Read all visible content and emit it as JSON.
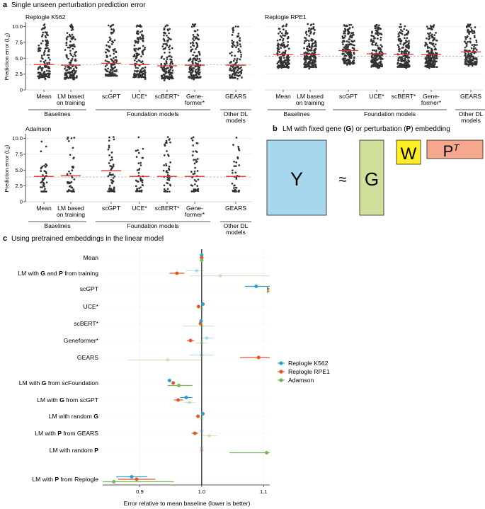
{
  "colors": {
    "k562": "#2a9fd0",
    "rpe1": "#e4561f",
    "adamson": "#7cb659",
    "dot": "#333333",
    "mean_line": "#e03030",
    "matrix_Y": "#a7d7ec",
    "matrix_G": "#cfe09a",
    "matrix_W": "#ffee22",
    "matrix_P": "#f6a78e",
    "spine": "#222222"
  },
  "panel_a": {
    "letter": "a",
    "title": "Single unseen perturbation prediction error",
    "ylabel": "Prediction error (L",
    "ylabel_sub": "2",
    "ylabel_end": ")",
    "categories": [
      {
        "lines": [
          "Mean"
        ]
      },
      {
        "lines": [
          "LM based",
          "on training"
        ]
      },
      {
        "lines": [
          "scGPT"
        ]
      },
      {
        "lines": [
          "UCE*"
        ]
      },
      {
        "lines": [
          "scBERT*"
        ]
      },
      {
        "lines": [
          "Gene-",
          "former*"
        ]
      },
      {
        "lines": [
          "GEARS"
        ]
      }
    ],
    "groups": [
      {
        "label": "Baselines"
      },
      {
        "label": "Foundation models"
      },
      {
        "label": "Other DL",
        "label2": "models"
      }
    ]
  },
  "chart_data": [
    {
      "type": "scatter",
      "title": "Replogle K562",
      "categories": [
        "Mean",
        "LM based on training",
        "scGPT",
        "UCE*",
        "scBERT*",
        "Geneformer*",
        "GEARS"
      ],
      "ylim": [
        0,
        10.5
      ],
      "yticks": [
        "0",
        "2.5",
        "5.0",
        "7.5",
        "10.0"
      ],
      "means": [
        4.0,
        3.9,
        4.2,
        4.0,
        3.8,
        3.9,
        3.9
      ],
      "dashed_baseline": 4.0
    },
    {
      "type": "scatter",
      "title": "Replogle RPE1",
      "categories": [
        "Mean",
        "LM based on training",
        "scGPT",
        "UCE*",
        "scBERT*",
        "Geneformer*",
        "GEARS"
      ],
      "ylim": [
        0,
        10.5
      ],
      "yticks": [],
      "means": [
        5.6,
        5.6,
        6.2,
        5.7,
        5.6,
        5.6,
        6.0
      ],
      "dashed_baseline": 5.3
    },
    {
      "type": "scatter",
      "title": "Adamson",
      "categories": [
        "Mean",
        "LM based on training",
        "scGPT",
        "UCE*",
        "scBERT*",
        "Geneformer*",
        "GEARS"
      ],
      "ylim": [
        0,
        10.5
      ],
      "yticks": [
        "0",
        "2.5",
        "5.0",
        "7.5",
        "10.0"
      ],
      "means": [
        4.0,
        4.1,
        4.9,
        4.0,
        4.0,
        4.0,
        4.0
      ],
      "dashed_baseline": 3.9
    },
    {
      "type": "scatter",
      "title": "Using pretrained embeddings in the linear model",
      "xlabel": "Error relative to mean baseline (lower is better)",
      "xlim": [
        0.84,
        1.11
      ],
      "xticks": [
        "0.9",
        "1.0",
        "1.1"
      ],
      "legend_position": "right",
      "rows": [
        "Mean",
        "LM with G and P from training",
        "scGPT",
        "UCE*",
        "scBERT*",
        "Geneformer*",
        "GEARS",
        "LM with G from scFoundation",
        "LM with G from scGPT",
        "LM with random G",
        "LM with P from GEARS",
        "LM with random P",
        "LM with P from Replogle"
      ],
      "series": [
        {
          "name": "Replogle K562",
          "values": [
            {
              "y": "Mean",
              "x": 1.0
            },
            {
              "y": "LM with G and P from training",
              "x": 0.992,
              "lo": 0.975,
              "hi": 1.003,
              "faded": true
            },
            {
              "y": "scGPT",
              "x": 1.088,
              "lo": 1.07,
              "hi": 1.11
            },
            {
              "y": "UCE*",
              "x": 1.002
            },
            {
              "y": "scBERT*",
              "x": 0.999
            },
            {
              "y": "Geneformer*",
              "x": 1.008,
              "lo": 0.998,
              "hi": 1.02,
              "faded": true
            },
            {
              "y": "GEARS",
              "x": 1.0,
              "lo": 0.98,
              "hi": 1.02,
              "faded": true
            },
            {
              "y": "LM with G from scFoundation",
              "x": 0.948
            },
            {
              "y": "LM with G from scGPT",
              "x": 0.975,
              "lo": 0.965,
              "hi": 0.985
            },
            {
              "y": "LM with random G",
              "x": 1.002
            },
            {
              "y": "LM with P from GEARS",
              "x": 1.0,
              "faded": true
            },
            {
              "y": "LM with random P",
              "x": 1.0,
              "faded": true
            },
            {
              "y": "LM with P from Replogle",
              "x": 0.887,
              "lo": 0.862,
              "hi": 0.912
            }
          ]
        },
        {
          "name": "Replogle RPE1",
          "values": [
            {
              "y": "Mean",
              "x": 1.0
            },
            {
              "y": "LM with G and P from training",
              "x": 0.96,
              "lo": 0.948,
              "hi": 0.972
            },
            {
              "y": "scGPT",
              "x": 1.11
            },
            {
              "y": "UCE*",
              "x": 0.995
            },
            {
              "y": "scBERT*",
              "x": 0.998
            },
            {
              "y": "Geneformer*",
              "x": 0.982,
              "lo": 0.976,
              "hi": 0.988
            },
            {
              "y": "GEARS",
              "x": 1.092,
              "lo": 1.062,
              "hi": 1.11
            },
            {
              "y": "LM with G from scFoundation",
              "x": 0.954
            },
            {
              "y": "LM with G from scGPT",
              "x": 0.962,
              "lo": 0.955,
              "hi": 0.97
            },
            {
              "y": "LM with random G",
              "x": 0.994
            },
            {
              "y": "LM with P from GEARS",
              "x": 0.989,
              "lo": 0.984,
              "hi": 0.994
            },
            {
              "y": "LM with random P",
              "x": 1.0,
              "faded": true
            },
            {
              "y": "LM with P from Replogle",
              "x": 0.895,
              "lo": 0.865,
              "hi": 0.925
            }
          ]
        },
        {
          "name": "Adamson",
          "values": [
            {
              "y": "Mean",
              "x": 1.0
            },
            {
              "y": "LM with G and P from training",
              "x": 1.03,
              "lo": 0.98,
              "hi": 1.11,
              "faded": true
            },
            {
              "y": "scGPT",
              "x": 1.11
            },
            {
              "y": "UCE*",
              "x": 1.0,
              "faded": true
            },
            {
              "y": "scBERT*",
              "x": 1.0,
              "lo": 0.97,
              "hi": 1.02,
              "faded": true
            },
            {
              "y": "Geneformer*",
              "x": 1.0,
              "lo": 0.99,
              "hi": 1.01,
              "faded": true
            },
            {
              "y": "GEARS",
              "x": 0.945,
              "lo": 0.88,
              "hi": 1.0,
              "faded": true
            },
            {
              "y": "LM with G from scFoundation",
              "x": 0.963,
              "lo": 0.945,
              "hi": 0.985
            },
            {
              "y": "LM with G from scGPT",
              "x": 0.98,
              "lo": 0.97,
              "hi": 0.99,
              "faded": true
            },
            {
              "y": "LM with random G",
              "x": 1.0,
              "faded": true
            },
            {
              "y": "LM with P from GEARS",
              "x": 1.012,
              "lo": 1.0,
              "hi": 1.025,
              "faded": true
            },
            {
              "y": "LM with random P",
              "x": 1.105,
              "lo": 1.045,
              "hi": 1.11
            },
            {
              "y": "LM with P from Replogle",
              "x": 0.858,
              "lo": 0.84,
              "hi": 0.955
            }
          ]
        }
      ]
    }
  ],
  "panel_b": {
    "letter": "b",
    "title_parts": [
      "LM with fixed gene (",
      "G",
      ") or perturbation (",
      "P",
      ") embedding"
    ],
    "Y": "Y",
    "approx": "≈",
    "G": "G",
    "W": "W",
    "P": "P",
    "P_sup": "T"
  },
  "panel_c": {
    "letter": "c",
    "rows": [
      {
        "label": "Mean"
      },
      {
        "parts": [
          "LM with ",
          "G",
          " and ",
          "P",
          " from training"
        ]
      },
      {
        "label": "scGPT"
      },
      {
        "label": "UCE*"
      },
      {
        "label": "scBERT*"
      },
      {
        "label": "Geneformer*"
      },
      {
        "label": "GEARS"
      },
      {
        "parts": [
          "LM with ",
          "G",
          " from scFoundation"
        ]
      },
      {
        "parts": [
          "LM with ",
          "G",
          " from scGPT"
        ]
      },
      {
        "parts": [
          "LM with random ",
          "G"
        ]
      },
      {
        "parts": [
          "LM with ",
          "P",
          " from GEARS"
        ]
      },
      {
        "parts": [
          "LM with random ",
          "P"
        ]
      },
      {
        "parts": [
          "LM with ",
          "P",
          " from Replogle"
        ]
      }
    ]
  }
}
